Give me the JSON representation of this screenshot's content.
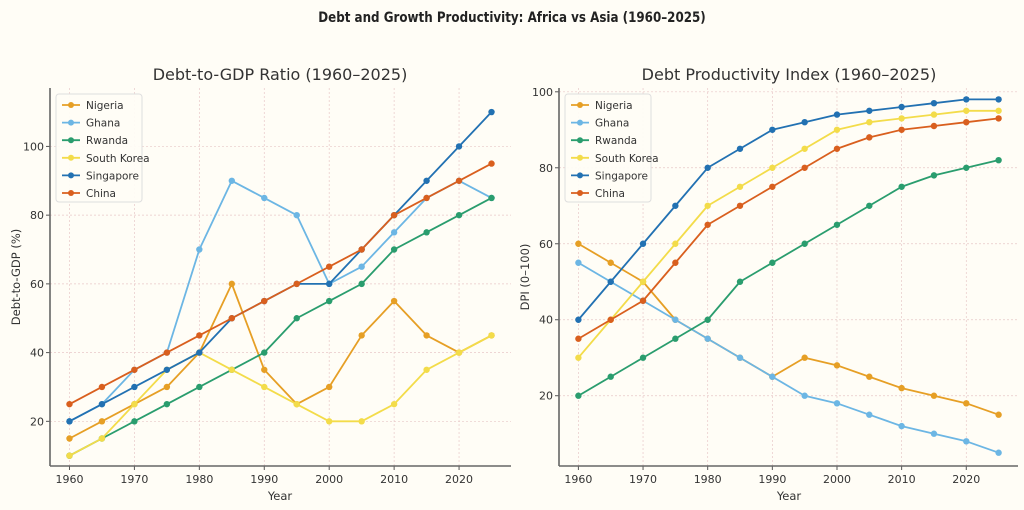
{
  "suptitle": "Debt and Growth Productivity: Africa vs Asia (1960–2025)",
  "colors": {
    "Nigeria": "#e69f25",
    "Ghana": "#6cb6e4",
    "Rwanda": "#2a9d6e",
    "South Korea": "#f3dc4a",
    "Singapore": "#2271b2",
    "China": "#d95f1e"
  },
  "chart_data": [
    {
      "type": "line",
      "title": "Debt-to-GDP Ratio (1960–2025)",
      "xlabel": "Year",
      "ylabel": "Debt-to-GDP (%)",
      "x": [
        1960,
        1965,
        1970,
        1975,
        1980,
        1985,
        1990,
        1995,
        2000,
        2005,
        2010,
        2015,
        2020,
        2025
      ],
      "xticks": [
        1960,
        1970,
        1980,
        1990,
        2000,
        2010,
        2020
      ],
      "yticks": [
        20,
        40,
        60,
        80,
        100
      ],
      "xlim": [
        1957,
        2028
      ],
      "ylim": [
        7,
        117
      ],
      "grid": true,
      "legend": "top-left",
      "series": [
        {
          "name": "Nigeria",
          "values": [
            15,
            20,
            25,
            30,
            40,
            60,
            35,
            25,
            30,
            45,
            55,
            45,
            40,
            45
          ]
        },
        {
          "name": "Ghana",
          "values": [
            20,
            25,
            35,
            40,
            70,
            90,
            85,
            80,
            60,
            65,
            75,
            85,
            90,
            85
          ]
        },
        {
          "name": "Rwanda",
          "values": [
            10,
            15,
            20,
            25,
            30,
            35,
            40,
            50,
            55,
            60,
            70,
            75,
            80,
            85
          ]
        },
        {
          "name": "South Korea",
          "values": [
            10,
            15,
            25,
            35,
            40,
            35,
            30,
            25,
            20,
            20,
            25,
            35,
            40,
            45
          ]
        },
        {
          "name": "Singapore",
          "values": [
            20,
            25,
            30,
            35,
            40,
            50,
            55,
            60,
            60,
            70,
            80,
            90,
            100,
            110
          ]
        },
        {
          "name": "China",
          "values": [
            25,
            30,
            35,
            40,
            45,
            50,
            55,
            60,
            65,
            70,
            80,
            85,
            90,
            95
          ]
        }
      ]
    },
    {
      "type": "line",
      "title": "Debt Productivity Index (1960–2025)",
      "xlabel": "Year",
      "ylabel": "DPI (0–100)",
      "x": [
        1960,
        1965,
        1970,
        1975,
        1980,
        1985,
        1990,
        1995,
        2000,
        2005,
        2010,
        2015,
        2020,
        2025
      ],
      "xticks": [
        1960,
        1970,
        1980,
        1990,
        2000,
        2010,
        2020
      ],
      "yticks": [
        20,
        40,
        60,
        80,
        100
      ],
      "xlim": [
        1957,
        2028
      ],
      "ylim": [
        1.5,
        101
      ],
      "grid": true,
      "legend": "top-left",
      "series": [
        {
          "name": "Nigeria",
          "values": [
            60,
            55,
            50,
            40,
            35,
            30,
            25,
            30,
            28,
            25,
            22,
            20,
            18,
            15
          ]
        },
        {
          "name": "Ghana",
          "values": [
            55,
            50,
            45,
            40,
            35,
            30,
            25,
            20,
            18,
            15,
            12,
            10,
            8,
            5
          ]
        },
        {
          "name": "Rwanda",
          "values": [
            20,
            25,
            30,
            35,
            40,
            50,
            55,
            60,
            65,
            70,
            75,
            78,
            80,
            82
          ]
        },
        {
          "name": "South Korea",
          "values": [
            30,
            40,
            50,
            60,
            70,
            75,
            80,
            85,
            90,
            92,
            93,
            94,
            95,
            95
          ]
        },
        {
          "name": "Singapore",
          "values": [
            40,
            50,
            60,
            70,
            80,
            85,
            90,
            92,
            94,
            95,
            96,
            97,
            98,
            98
          ]
        },
        {
          "name": "China",
          "values": [
            35,
            40,
            45,
            55,
            65,
            70,
            75,
            80,
            85,
            88,
            90,
            91,
            92,
            93
          ]
        }
      ]
    }
  ]
}
